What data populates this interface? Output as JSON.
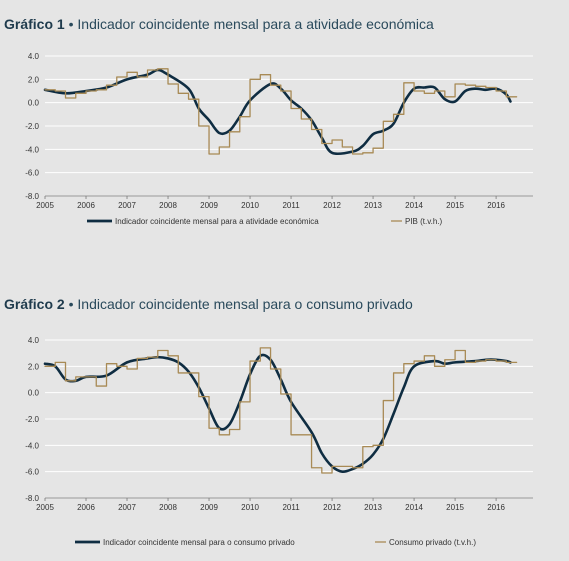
{
  "chart_data": [
    {
      "type": "line",
      "title_number": "Gráfico 1",
      "title_sep": "•",
      "title": "Indicador coincidente mensal para a atividade económica",
      "xlim": [
        2005,
        2016.9
      ],
      "ylim": [
        -8,
        4
      ],
      "x_ticks": [
        "2005",
        "2006",
        "2007",
        "2008",
        "2009",
        "2010",
        "2011",
        "2012",
        "2013",
        "2014",
        "2015",
        "2016"
      ],
      "y_ticks": [
        "4.0",
        "2.0",
        "0.0",
        "-2.0",
        "-4.0",
        "-6.0",
        "-8.0"
      ],
      "grid": true,
      "legend_position": "bottom",
      "series": [
        {
          "name": "Indicador coincidente mensal para a atividade económica",
          "color": "#0f2d42",
          "style": "smooth",
          "points": [
            [
              2005,
              1.1
            ],
            [
              2005.5,
              0.8
            ],
            [
              2006,
              1.0
            ],
            [
              2006.5,
              1.3
            ],
            [
              2007,
              2.0
            ],
            [
              2007.5,
              2.4
            ],
            [
              2007.75,
              2.8
            ],
            [
              2008,
              2.4
            ],
            [
              2008.5,
              1.2
            ],
            [
              2008.75,
              -0.5
            ],
            [
              2009,
              -1.5
            ],
            [
              2009.25,
              -2.6
            ],
            [
              2009.5,
              -2.4
            ],
            [
              2009.75,
              -1.2
            ],
            [
              2010,
              0.2
            ],
            [
              2010.5,
              1.6
            ],
            [
              2010.75,
              1.2
            ],
            [
              2011,
              0.2
            ],
            [
              2011.25,
              -0.5
            ],
            [
              2011.5,
              -1.5
            ],
            [
              2011.75,
              -3.0
            ],
            [
              2012,
              -4.3
            ],
            [
              2012.5,
              -4.2
            ],
            [
              2012.75,
              -3.7
            ],
            [
              2013,
              -2.7
            ],
            [
              2013.25,
              -2.4
            ],
            [
              2013.5,
              -1.8
            ],
            [
              2013.75,
              0.0
            ],
            [
              2014,
              1.2
            ],
            [
              2014.25,
              1.3
            ],
            [
              2014.5,
              1.3
            ],
            [
              2014.75,
              0.3
            ],
            [
              2015,
              0.1
            ],
            [
              2015.25,
              1.0
            ],
            [
              2015.5,
              1.2
            ],
            [
              2015.75,
              1.1
            ],
            [
              2016,
              1.2
            ],
            [
              2016.25,
              0.7
            ],
            [
              2016.35,
              0.1
            ]
          ]
        },
        {
          "name": "PIB (t.v.h.)",
          "color": "#a88a55",
          "style": "step",
          "points": [
            [
              2005,
              1.1
            ],
            [
              2005.25,
              1.0
            ],
            [
              2005.5,
              0.4
            ],
            [
              2005.75,
              0.8
            ],
            [
              2006,
              1.0
            ],
            [
              2006.25,
              1.1
            ],
            [
              2006.5,
              1.5
            ],
            [
              2006.75,
              2.2
            ],
            [
              2007,
              2.6
            ],
            [
              2007.25,
              2.2
            ],
            [
              2007.5,
              2.8
            ],
            [
              2007.75,
              2.9
            ],
            [
              2008,
              1.6
            ],
            [
              2008.25,
              0.8
            ],
            [
              2008.5,
              0.3
            ],
            [
              2008.75,
              -2.0
            ],
            [
              2009,
              -4.4
            ],
            [
              2009.25,
              -3.8
            ],
            [
              2009.5,
              -2.5
            ],
            [
              2009.75,
              -1.2
            ],
            [
              2010,
              2.0
            ],
            [
              2010.25,
              2.4
            ],
            [
              2010.5,
              1.5
            ],
            [
              2010.75,
              1.0
            ],
            [
              2011,
              -0.5
            ],
            [
              2011.25,
              -1.4
            ],
            [
              2011.5,
              -2.3
            ],
            [
              2011.75,
              -3.5
            ],
            [
              2012,
              -3.2
            ],
            [
              2012.25,
              -3.8
            ],
            [
              2012.5,
              -4.4
            ],
            [
              2012.75,
              -4.3
            ],
            [
              2013,
              -3.9
            ],
            [
              2013.25,
              -1.6
            ],
            [
              2013.5,
              -1.0
            ],
            [
              2013.75,
              1.7
            ],
            [
              2014,
              1.0
            ],
            [
              2014.25,
              0.8
            ],
            [
              2014.5,
              1.0
            ],
            [
              2014.75,
              0.5
            ],
            [
              2015,
              1.6
            ],
            [
              2015.25,
              1.5
            ],
            [
              2015.5,
              1.4
            ],
            [
              2015.75,
              1.3
            ],
            [
              2016,
              1.0
            ],
            [
              2016.25,
              0.5
            ]
          ]
        }
      ]
    },
    {
      "type": "line",
      "title_number": "Gráfico 2",
      "title_sep": "•",
      "title": "Indicador coincidente mensal para o consumo privado",
      "xlim": [
        2005,
        2016.9
      ],
      "ylim": [
        -8,
        4
      ],
      "x_ticks": [
        "2005",
        "2006",
        "2007",
        "2008",
        "2009",
        "2010",
        "2011",
        "2012",
        "2013",
        "2014",
        "2015",
        "2016"
      ],
      "y_ticks": [
        "4.0",
        "2.0",
        "0.0",
        "-2.0",
        "-4.0",
        "-6.0",
        "-8.0"
      ],
      "grid": true,
      "legend_position": "bottom",
      "series": [
        {
          "name": "Indicador coincidente mensal para o consumo privado",
          "color": "#0f2d42",
          "style": "smooth",
          "points": [
            [
              2005,
              2.2
            ],
            [
              2005.25,
              2.0
            ],
            [
              2005.5,
              1.0
            ],
            [
              2005.75,
              0.9
            ],
            [
              2006,
              1.2
            ],
            [
              2006.5,
              1.3
            ],
            [
              2007,
              2.3
            ],
            [
              2007.5,
              2.6
            ],
            [
              2007.75,
              2.7
            ],
            [
              2008,
              2.6
            ],
            [
              2008.25,
              2.3
            ],
            [
              2008.5,
              1.6
            ],
            [
              2008.75,
              0.4
            ],
            [
              2009,
              -1.2
            ],
            [
              2009.25,
              -2.7
            ],
            [
              2009.5,
              -2.4
            ],
            [
              2009.75,
              -0.7
            ],
            [
              2010,
              1.4
            ],
            [
              2010.25,
              2.8
            ],
            [
              2010.5,
              2.5
            ],
            [
              2010.75,
              1.0
            ],
            [
              2011,
              -0.7
            ],
            [
              2011.5,
              -3.0
            ],
            [
              2011.75,
              -4.6
            ],
            [
              2012,
              -5.6
            ],
            [
              2012.25,
              -6.0
            ],
            [
              2012.5,
              -5.8
            ],
            [
              2012.75,
              -5.4
            ],
            [
              2013,
              -4.7
            ],
            [
              2013.25,
              -3.5
            ],
            [
              2013.5,
              -1.6
            ],
            [
              2013.75,
              0.4
            ],
            [
              2014,
              2.0
            ],
            [
              2014.5,
              2.4
            ],
            [
              2014.75,
              2.2
            ],
            [
              2015,
              2.3
            ],
            [
              2015.5,
              2.4
            ],
            [
              2015.75,
              2.5
            ],
            [
              2016,
              2.5
            ],
            [
              2016.25,
              2.4
            ],
            [
              2016.35,
              2.3
            ]
          ]
        },
        {
          "name": "Consumo privado (t.v.h.)",
          "color": "#a88a55",
          "style": "step",
          "points": [
            [
              2005,
              2.0
            ],
            [
              2005.25,
              2.3
            ],
            [
              2005.5,
              0.9
            ],
            [
              2005.75,
              1.2
            ],
            [
              2006,
              1.2
            ],
            [
              2006.25,
              0.5
            ],
            [
              2006.5,
              2.2
            ],
            [
              2006.75,
              2.0
            ],
            [
              2007,
              1.8
            ],
            [
              2007.25,
              2.6
            ],
            [
              2007.5,
              2.7
            ],
            [
              2007.75,
              3.2
            ],
            [
              2008,
              2.8
            ],
            [
              2008.25,
              1.5
            ],
            [
              2008.5,
              1.5
            ],
            [
              2008.75,
              -0.3
            ],
            [
              2009,
              -2.7
            ],
            [
              2009.25,
              -3.2
            ],
            [
              2009.5,
              -2.8
            ],
            [
              2009.75,
              -0.7
            ],
            [
              2010,
              2.4
            ],
            [
              2010.25,
              3.4
            ],
            [
              2010.5,
              1.8
            ],
            [
              2010.75,
              -0.1
            ],
            [
              2011,
              -3.2
            ],
            [
              2011.25,
              -3.2
            ],
            [
              2011.5,
              -5.7
            ],
            [
              2011.75,
              -6.1
            ],
            [
              2012,
              -5.6
            ],
            [
              2012.25,
              -5.6
            ],
            [
              2012.5,
              -5.7
            ],
            [
              2012.75,
              -4.1
            ],
            [
              2013,
              -4.0
            ],
            [
              2013.25,
              -0.6
            ],
            [
              2013.5,
              1.5
            ],
            [
              2013.75,
              2.2
            ],
            [
              2014,
              2.4
            ],
            [
              2014.25,
              2.8
            ],
            [
              2014.5,
              2.0
            ],
            [
              2014.75,
              2.5
            ],
            [
              2015,
              3.2
            ],
            [
              2015.25,
              2.3
            ],
            [
              2015.5,
              2.4
            ],
            [
              2015.75,
              2.5
            ],
            [
              2016,
              2.4
            ],
            [
              2016.25,
              2.3
            ]
          ]
        }
      ]
    }
  ]
}
